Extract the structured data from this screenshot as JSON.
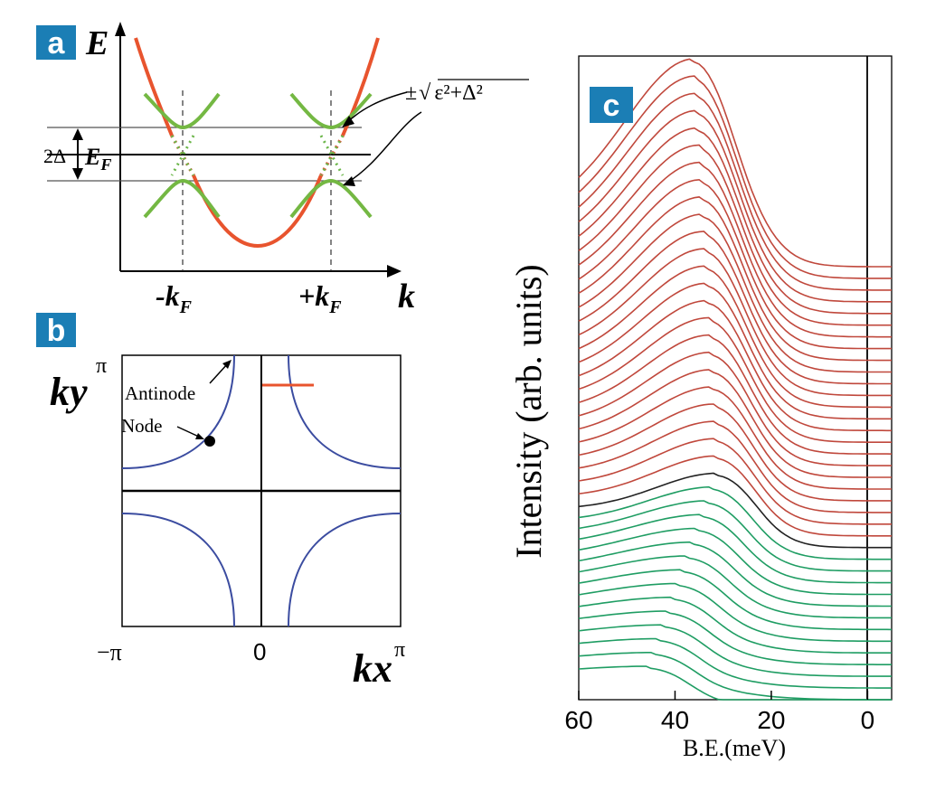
{
  "colors": {
    "badge": "#1b7eb5",
    "red_band": "#e8542e",
    "green_band": "#74b843",
    "dot_red": "#e0583c",
    "dot_green": "#6ab548",
    "fermi_contour": "#3b4ca0",
    "red_curves": "#c0483c",
    "green_curves": "#1f9d63",
    "black_curve": "#222222",
    "axis": "#000000"
  },
  "panel_a": {
    "badge": "a",
    "y_axis_label": "E",
    "x_axis_label": "k",
    "minus_kf_base": "-k",
    "plus_kf_base": "+k",
    "kf_subscript": "F",
    "gap_label": "2Δ",
    "ef_base": "E",
    "ef_subscript": "F",
    "formula_prefix": "±",
    "formula_body": "ε²+Δ²"
  },
  "panel_b": {
    "badge": "b",
    "ky_base": "ky",
    "ky_pi": "π",
    "kx_base": "kx",
    "kx_pi": "π",
    "x_min_label": "−π",
    "x_zero_label": "0",
    "antinode_label": "Antinode",
    "node_label": "Node"
  },
  "chart_data": {
    "type": "line",
    "panel_badge": "c",
    "ylabel": "Intensity (arb. units)",
    "xlabel": "B.E.(meV)",
    "xlim": [
      60,
      -5
    ],
    "xticks": [
      60,
      40,
      20,
      0
    ],
    "vertical_marker_x": 0,
    "n_red_curves": 24,
    "n_green_curves": 14,
    "black_curve_index": 24,
    "x_step_meV": 5,
    "x": [
      60,
      55,
      50,
      45,
      40,
      35,
      30,
      25,
      20,
      15,
      10,
      5,
      0,
      -5
    ],
    "curve_model": {
      "description": "Stacked EDCs from Fermi-surface cut; peak shifts from ~36 meV (top, red) to ~45 meV (bottom, green); stacking offset constant",
      "top_peak_meV": 36,
      "black_peak_meV": 31,
      "bottom_peak_meV": 45,
      "offset_per_curve": 1
    }
  }
}
